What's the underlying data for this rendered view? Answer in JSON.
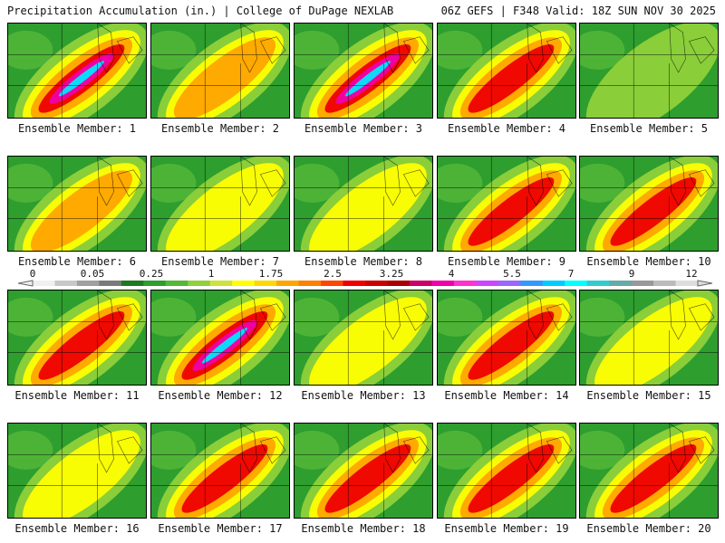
{
  "header": {
    "left": "Precipitation Accumulation (in.) | College of DuPage NEXLAB",
    "right": "06Z GEFS | F348 Valid: 18Z SUN NOV 30 2025"
  },
  "members": [
    {
      "label": "Ensemble Member: 1",
      "intensity": 5
    },
    {
      "label": "Ensemble Member: 2",
      "intensity": 3
    },
    {
      "label": "Ensemble Member: 3",
      "intensity": 5
    },
    {
      "label": "Ensemble Member: 4",
      "intensity": 4
    },
    {
      "label": "Ensemble Member: 5",
      "intensity": 1
    },
    {
      "label": "Ensemble Member: 6",
      "intensity": 3
    },
    {
      "label": "Ensemble Member: 7",
      "intensity": 2
    },
    {
      "label": "Ensemble Member: 8",
      "intensity": 2
    },
    {
      "label": "Ensemble Member: 9",
      "intensity": 4
    },
    {
      "label": "Ensemble Member: 10",
      "intensity": 4
    },
    {
      "label": "Ensemble Member: 11",
      "intensity": 4
    },
    {
      "label": "Ensemble Member: 12",
      "intensity": 5
    },
    {
      "label": "Ensemble Member: 13",
      "intensity": 2
    },
    {
      "label": "Ensemble Member: 14",
      "intensity": 4
    },
    {
      "label": "Ensemble Member: 15",
      "intensity": 2
    },
    {
      "label": "Ensemble Member: 16",
      "intensity": 2
    },
    {
      "label": "Ensemble Member: 17",
      "intensity": 4
    },
    {
      "label": "Ensemble Member: 18",
      "intensity": 4
    },
    {
      "label": "Ensemble Member: 19",
      "intensity": 4
    },
    {
      "label": "Ensemble Member: 20",
      "intensity": 4
    }
  ],
  "colorbar": {
    "ticks": [
      "0",
      "0.05",
      "0.25",
      "1",
      "1.75",
      "2.5",
      "3.25",
      "4",
      "5.5",
      "7",
      "9",
      "12"
    ],
    "colors": [
      "#f0f0f0",
      "#c8c8c8",
      "#a0a0a0",
      "#7a7a7a",
      "#1f7a1f",
      "#2e9e2e",
      "#55b83a",
      "#8fd13a",
      "#cde33a",
      "#ffff00",
      "#ffd700",
      "#ffa500",
      "#ff7f00",
      "#ff4500",
      "#ee0000",
      "#cc0000",
      "#aa0000",
      "#cc0066",
      "#ee00aa",
      "#ff33cc",
      "#cc44ff",
      "#9966ff",
      "#3399ff",
      "#00ccff",
      "#00ffff",
      "#33cccc",
      "#66aaaa",
      "#999999",
      "#bbbbbb",
      "#dddddd"
    ]
  }
}
